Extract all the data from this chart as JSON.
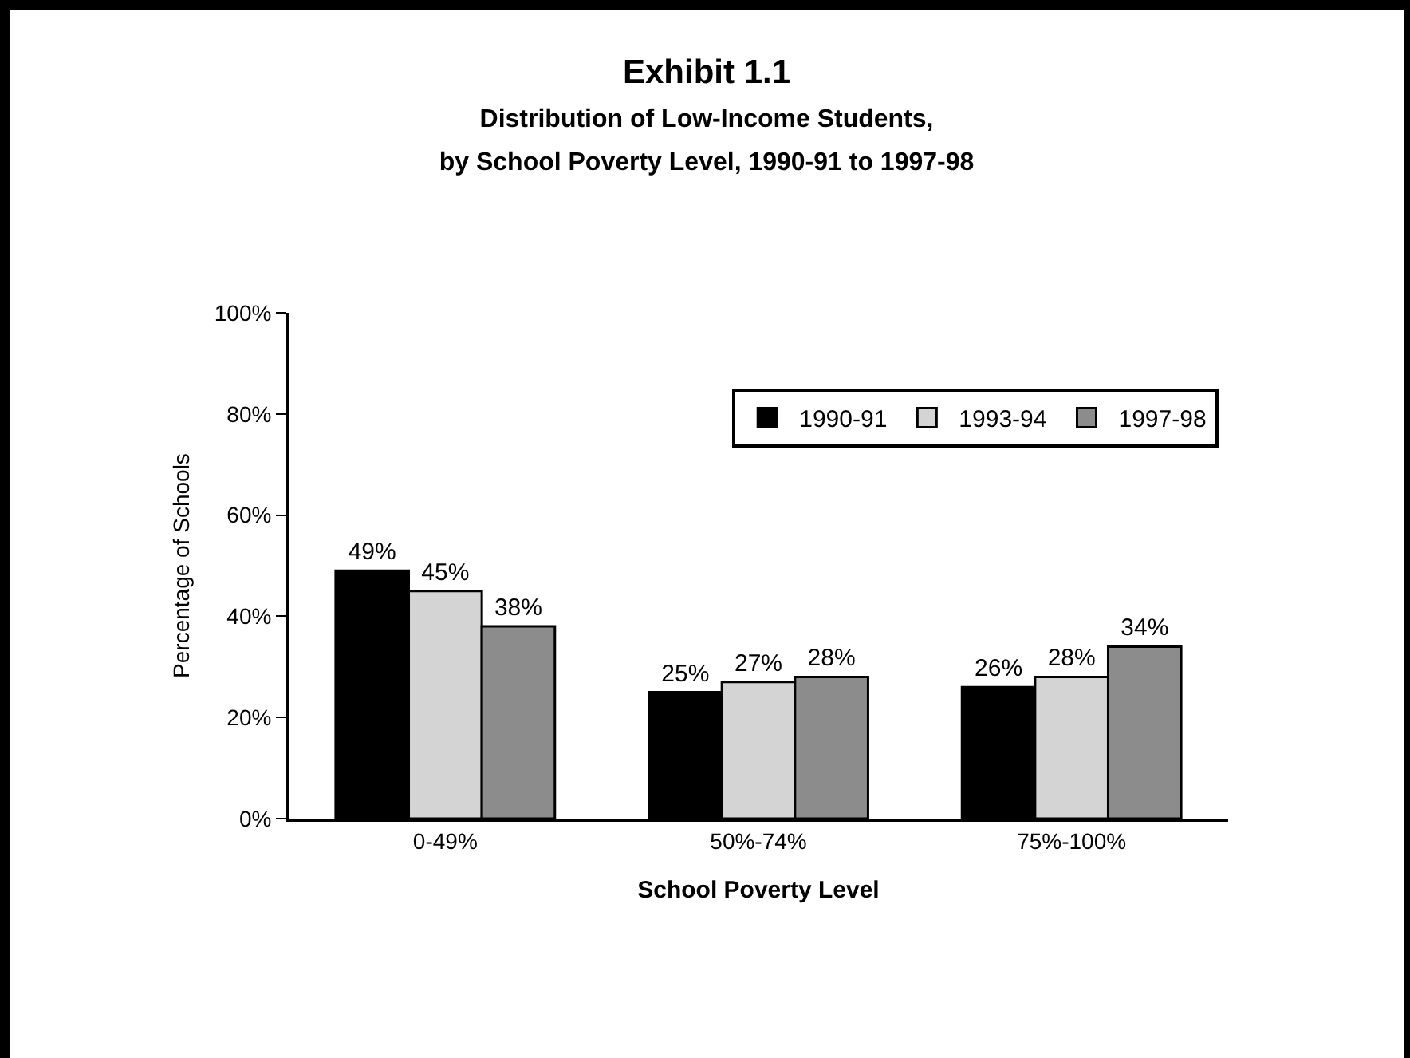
{
  "chart_data": {
    "type": "bar",
    "title": "Exhibit 1.1",
    "subtitle": "Distribution of Low-Income Students,\nby School Poverty Level, 1990-91 to 1997-98",
    "xlabel": "School Poverty Level",
    "ylabel": "Percentage of Schools",
    "categories": [
      "0-49%",
      "50%-74%",
      "75%-100%"
    ],
    "series": [
      {
        "name": "1990-91",
        "color": "#000000",
        "values": [
          49,
          25,
          26
        ],
        "value_labels": [
          "49%",
          "25%",
          "26%"
        ]
      },
      {
        "name": "1993-94",
        "color": "#d4d4d4",
        "values": [
          45,
          27,
          28
        ],
        "value_labels": [
          "45%",
          "27%",
          "28%"
        ]
      },
      {
        "name": "1997-98",
        "color": "#8c8c8c",
        "values": [
          38,
          28,
          34
        ],
        "value_labels": [
          "38%",
          "28%",
          "34%"
        ]
      }
    ],
    "ylim": [
      0,
      100
    ],
    "yticks": [
      {
        "value": 0,
        "label": "0%"
      },
      {
        "value": 20,
        "label": "20%"
      },
      {
        "value": 40,
        "label": "40%"
      },
      {
        "value": 60,
        "label": "60%"
      },
      {
        "value": 80,
        "label": "80%"
      },
      {
        "value": 100,
        "label": "100%"
      }
    ],
    "grid": false,
    "legend": "top right"
  }
}
